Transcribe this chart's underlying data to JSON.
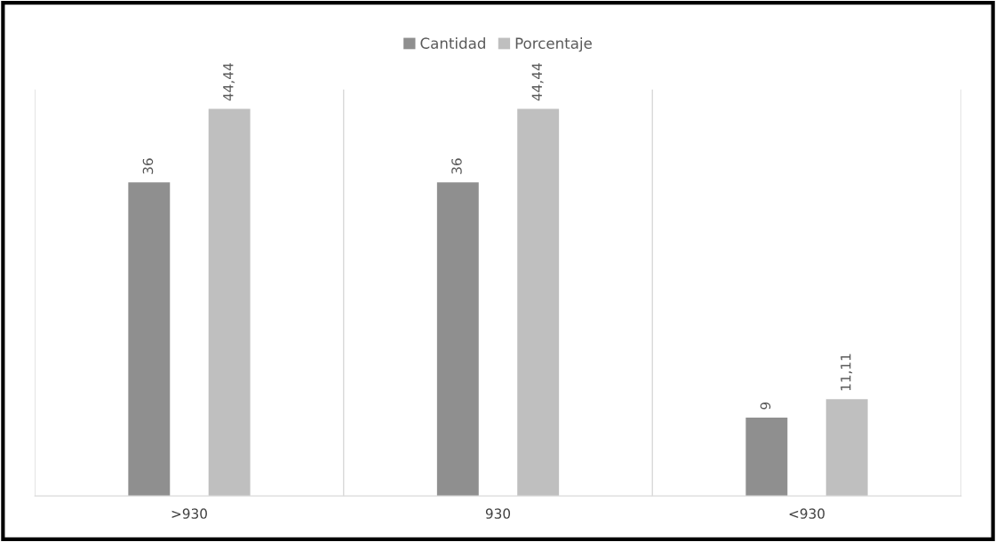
{
  "chart_data": {
    "type": "bar",
    "categories": [
      ">930",
      "930",
      "<930"
    ],
    "series": [
      {
        "name": "Cantidad",
        "color": "#8f8f8f",
        "values": [
          36,
          36,
          9
        ]
      },
      {
        "name": "Porcentaje",
        "color": "#bfbfbf",
        "values": [
          44.44,
          44.44,
          11.11
        ],
        "value_labels": [
          "44,44",
          "44,44",
          "11,11"
        ]
      }
    ],
    "data_labels": true,
    "legend": "top",
    "grid": "x"
  }
}
